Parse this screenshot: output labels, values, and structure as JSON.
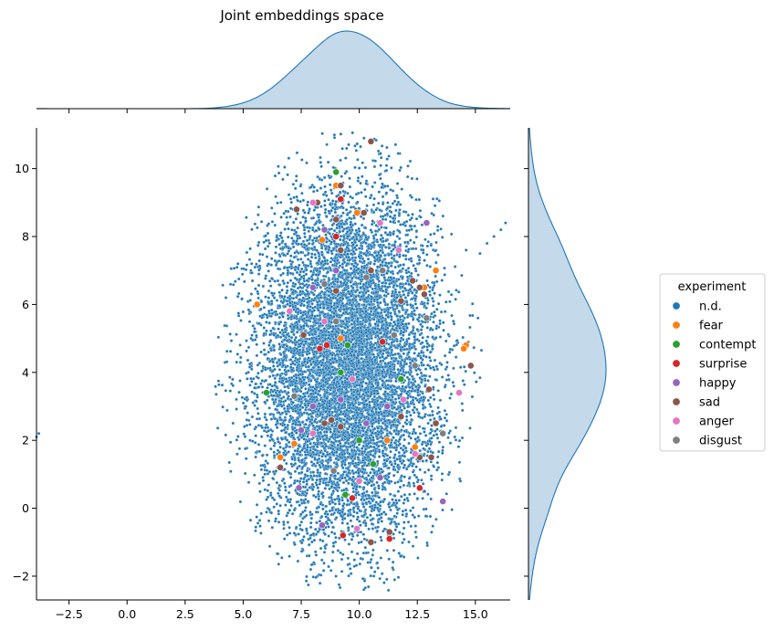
{
  "chart_data": {
    "type": "scatter",
    "title": "Joint embeddings space",
    "xlabel": "",
    "ylabel": "",
    "xlim": [
      -3.9,
      16.5
    ],
    "ylim": [
      -2.7,
      11.2
    ],
    "x_ticks": [
      -2.5,
      0.0,
      2.5,
      5.0,
      7.5,
      10.0,
      12.5,
      15.0
    ],
    "x_tick_labels": [
      "−2.5",
      "0.0",
      "2.5",
      "5.0",
      "7.5",
      "10.0",
      "12.5",
      "15.0"
    ],
    "y_ticks": [
      -2,
      0,
      2,
      4,
      6,
      8,
      10
    ],
    "y_tick_labels": [
      "−2",
      "0",
      "2",
      "4",
      "6",
      "8",
      "10"
    ],
    "grid": false,
    "legend": {
      "title": "experiment",
      "placement": "right",
      "entries": [
        "n.d.",
        "fear",
        "contempt",
        "surprise",
        "happy",
        "sad",
        "anger",
        "disgust"
      ]
    },
    "colors": {
      "n.d.": "#1f77b4",
      "fear": "#ff7f0e",
      "contempt": "#2ca02c",
      "surprise": "#d62728",
      "happy": "#9467bd",
      "sad": "#8c564b",
      "anger": "#e377c2",
      "disgust": "#7f7f7f"
    },
    "marginal_kde": {
      "x_peak_approx": 9.3,
      "y_peak_approx": 3.7,
      "fill": "#c4d9ea",
      "line": "#1f77b4"
    },
    "nd_cloud": {
      "description_count": 9000,
      "x_center": 9.5,
      "x_sd": 2.0,
      "y_center": 4.2,
      "y_sd": 2.4,
      "outliers": [
        [
          -3.8,
          2.2
        ],
        [
          -3.9,
          2.1
        ],
        [
          15.8,
          8.0
        ],
        [
          16.1,
          8.2
        ],
        [
          16.3,
          8.4
        ],
        [
          15.2,
          7.5
        ],
        [
          15.5,
          7.8
        ],
        [
          14.6,
          7.6
        ]
      ]
    },
    "series": [
      {
        "name": "fear",
        "points": [
          [
            5.6,
            6.0
          ],
          [
            9.0,
            9.5
          ],
          [
            9.9,
            8.7
          ],
          [
            8.4,
            7.9
          ],
          [
            13.3,
            7.0
          ],
          [
            14.6,
            4.8
          ],
          [
            14.5,
            4.7
          ],
          [
            12.8,
            6.5
          ],
          [
            12.4,
            1.8
          ],
          [
            6.6,
            1.5
          ],
          [
            9.2,
            5.0
          ],
          [
            11.2,
            2.0
          ],
          [
            7.2,
            1.9
          ]
        ]
      },
      {
        "name": "contempt",
        "points": [
          [
            9.0,
            9.9
          ],
          [
            9.2,
            4.0
          ],
          [
            6.0,
            3.4
          ],
          [
            10.0,
            2.0
          ],
          [
            10.6,
            1.3
          ],
          [
            11.8,
            3.8
          ],
          [
            9.4,
            0.4
          ],
          [
            9.5,
            4.8
          ]
        ]
      },
      {
        "name": "surprise",
        "points": [
          [
            9.0,
            8.0
          ],
          [
            9.2,
            9.1
          ],
          [
            8.6,
            4.8
          ],
          [
            8.3,
            4.7
          ],
          [
            11.0,
            4.9
          ],
          [
            12.6,
            0.6
          ],
          [
            9.3,
            -0.8
          ],
          [
            11.3,
            -0.9
          ],
          [
            9.7,
            0.3
          ]
        ]
      },
      {
        "name": "happy",
        "points": [
          [
            8.0,
            6.5
          ],
          [
            9.0,
            7.0
          ],
          [
            12.9,
            8.4
          ],
          [
            8.5,
            8.2
          ],
          [
            9.2,
            3.2
          ],
          [
            7.5,
            2.3
          ],
          [
            8.0,
            3.0
          ],
          [
            10.3,
            2.5
          ],
          [
            7.4,
            0.6
          ],
          [
            13.6,
            0.2
          ],
          [
            8.4,
            -0.5
          ],
          [
            11.2,
            3.0
          ],
          [
            10.9,
            0.9
          ]
        ]
      },
      {
        "name": "sad",
        "points": [
          [
            10.5,
            10.8
          ],
          [
            8.2,
            9.0
          ],
          [
            9.2,
            9.5
          ],
          [
            9.0,
            8.5
          ],
          [
            10.2,
            8.7
          ],
          [
            7.3,
            8.8
          ],
          [
            9.2,
            7.6
          ],
          [
            12.3,
            6.7
          ],
          [
            12.6,
            6.5
          ],
          [
            12.8,
            6.3
          ],
          [
            10.5,
            7.0
          ],
          [
            9.0,
            6.4
          ],
          [
            11.8,
            6.1
          ],
          [
            7.6,
            5.1
          ],
          [
            8.5,
            2.5
          ],
          [
            9.2,
            2.4
          ],
          [
            12.6,
            1.5
          ],
          [
            13.1,
            1.5
          ],
          [
            14.8,
            4.2
          ],
          [
            13.3,
            2.5
          ],
          [
            11.8,
            2.7
          ],
          [
            6.6,
            1.2
          ],
          [
            10.5,
            -1.0
          ],
          [
            11.3,
            -0.7
          ],
          [
            13.0,
            3.5
          ],
          [
            8.8,
            2.6
          ]
        ]
      },
      {
        "name": "anger",
        "points": [
          [
            8.0,
            9.0
          ],
          [
            10.9,
            8.4
          ],
          [
            11.7,
            7.6
          ],
          [
            8.5,
            5.5
          ],
          [
            14.3,
            3.4
          ],
          [
            9.7,
            3.8
          ],
          [
            8.0,
            2.2
          ],
          [
            10.0,
            0.8
          ],
          [
            9.9,
            -0.6
          ],
          [
            12.4,
            1.6
          ],
          [
            7.0,
            5.8
          ],
          [
            11.9,
            3.2
          ]
        ]
      },
      {
        "name": "disgust",
        "points": [
          [
            8.5,
            6.6
          ],
          [
            10.3,
            6.8
          ],
          [
            9.0,
            5.5
          ],
          [
            11.5,
            5.1
          ],
          [
            7.2,
            3.3
          ],
          [
            12.4,
            4.2
          ],
          [
            8.9,
            1.1
          ],
          [
            11.0,
            7.0
          ],
          [
            12.9,
            5.6
          ],
          [
            13.6,
            2.2
          ]
        ]
      }
    ]
  }
}
